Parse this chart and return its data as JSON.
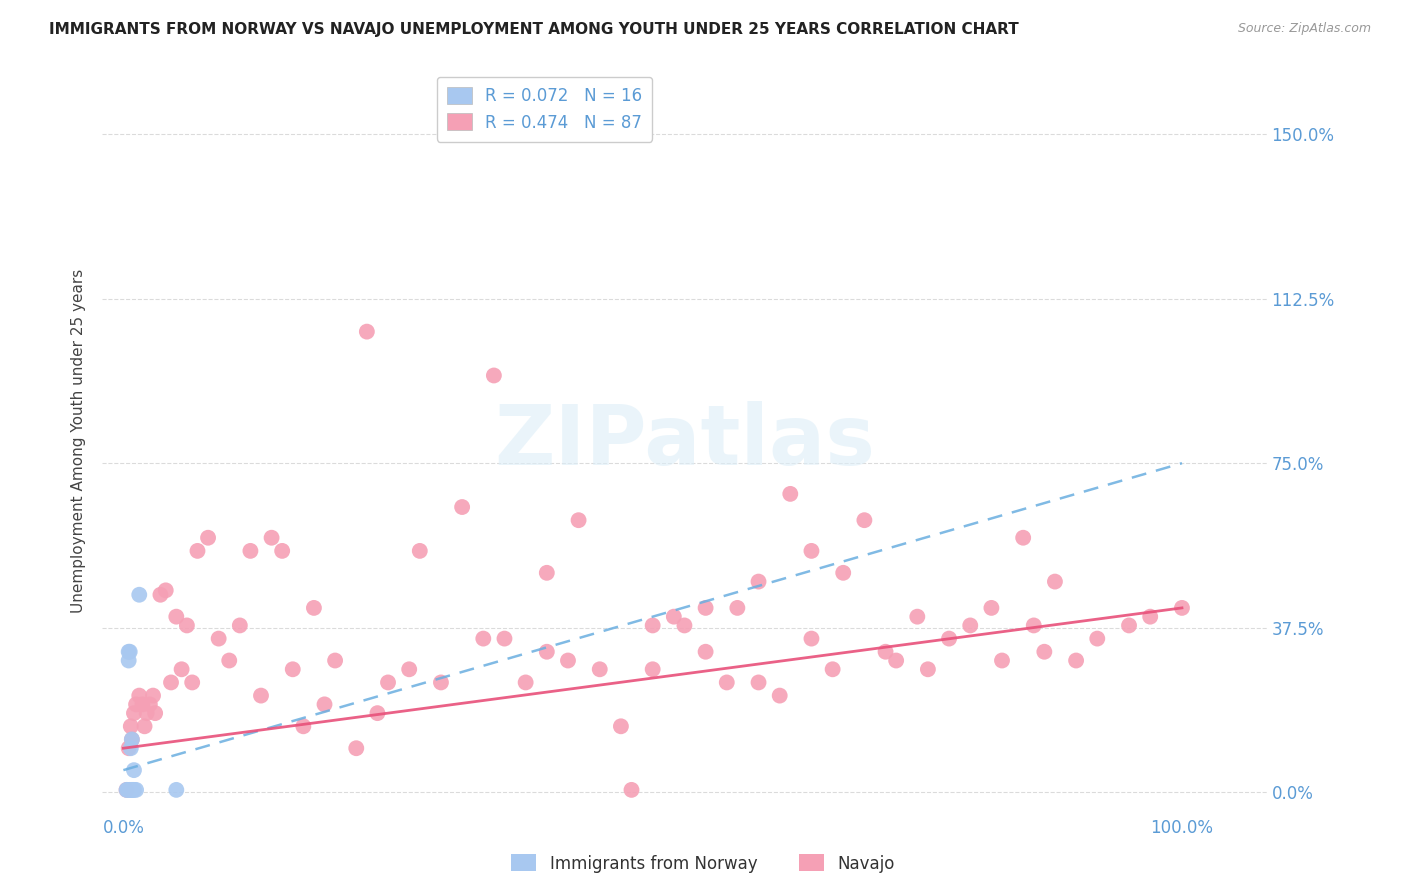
{
  "title": "IMMIGRANTS FROM NORWAY VS NAVAJO UNEMPLOYMENT AMONG YOUTH UNDER 25 YEARS CORRELATION CHART",
  "source": "Source: ZipAtlas.com",
  "ylabel": "Unemployment Among Youth under 25 years",
  "ytick_labels": [
    "0.0%",
    "37.5%",
    "75.0%",
    "112.5%",
    "150.0%"
  ],
  "ytick_values": [
    0.0,
    0.375,
    0.75,
    1.125,
    1.5
  ],
  "xtick_labels": [
    "0.0%",
    "100.0%"
  ],
  "xtick_values": [
    0.0,
    1.0
  ],
  "xlim": [
    -0.02,
    1.08
  ],
  "ylim": [
    -0.05,
    1.65
  ],
  "norway_color": "#a8c8f0",
  "navajo_color": "#f5a0b5",
  "norway_line_color": "#6aaee0",
  "navajo_line_color": "#e8507a",
  "tick_color": "#5b9bd5",
  "background_color": "#ffffff",
  "watermark_text": "ZIPatlas",
  "legend_norway_text": "R = 0.072   N = 16",
  "legend_navajo_text": "R = 0.474   N = 87",
  "bottom_legend_norway": "Immigrants from Norway",
  "bottom_legend_navajo": "Navajo",
  "norway_scatter_x": [
    0.003,
    0.004,
    0.005,
    0.005,
    0.006,
    0.006,
    0.007,
    0.007,
    0.008,
    0.008,
    0.009,
    0.01,
    0.01,
    0.012,
    0.015,
    0.05
  ],
  "norway_scatter_y": [
    0.005,
    0.005,
    0.3,
    0.32,
    0.005,
    0.32,
    0.005,
    0.1,
    0.005,
    0.12,
    0.005,
    0.005,
    0.05,
    0.005,
    0.45,
    0.005
  ],
  "navajo_scatter_x": [
    0.003,
    0.005,
    0.007,
    0.008,
    0.01,
    0.012,
    0.015,
    0.018,
    0.02,
    0.022,
    0.025,
    0.028,
    0.03,
    0.035,
    0.04,
    0.045,
    0.05,
    0.055,
    0.06,
    0.065,
    0.07,
    0.08,
    0.09,
    0.1,
    0.11,
    0.12,
    0.13,
    0.14,
    0.15,
    0.16,
    0.17,
    0.18,
    0.19,
    0.2,
    0.22,
    0.23,
    0.24,
    0.25,
    0.27,
    0.28,
    0.3,
    0.32,
    0.34,
    0.35,
    0.36,
    0.38,
    0.4,
    0.4,
    0.42,
    0.43,
    0.45,
    0.47,
    0.48,
    0.5,
    0.5,
    0.52,
    0.53,
    0.55,
    0.55,
    0.57,
    0.58,
    0.6,
    0.6,
    0.62,
    0.63,
    0.65,
    0.65,
    0.67,
    0.68,
    0.7,
    0.72,
    0.73,
    0.75,
    0.76,
    0.78,
    0.8,
    0.82,
    0.83,
    0.85,
    0.86,
    0.87,
    0.88,
    0.9,
    0.92,
    0.95,
    0.97,
    1.0
  ],
  "navajo_scatter_y": [
    0.005,
    0.1,
    0.15,
    0.12,
    0.18,
    0.2,
    0.22,
    0.2,
    0.15,
    0.18,
    0.2,
    0.22,
    0.18,
    0.45,
    0.46,
    0.25,
    0.4,
    0.28,
    0.38,
    0.25,
    0.55,
    0.58,
    0.35,
    0.3,
    0.38,
    0.55,
    0.22,
    0.58,
    0.55,
    0.28,
    0.15,
    0.42,
    0.2,
    0.3,
    0.1,
    1.05,
    0.18,
    0.25,
    0.28,
    0.55,
    0.25,
    0.65,
    0.35,
    0.95,
    0.35,
    0.25,
    0.32,
    0.5,
    0.3,
    0.62,
    0.28,
    0.15,
    0.005,
    0.28,
    0.38,
    0.4,
    0.38,
    0.42,
    0.32,
    0.25,
    0.42,
    0.25,
    0.48,
    0.22,
    0.68,
    0.55,
    0.35,
    0.28,
    0.5,
    0.62,
    0.32,
    0.3,
    0.4,
    0.28,
    0.35,
    0.38,
    0.42,
    0.3,
    0.58,
    0.38,
    0.32,
    0.48,
    0.3,
    0.35,
    0.38,
    0.4,
    0.42
  ]
}
